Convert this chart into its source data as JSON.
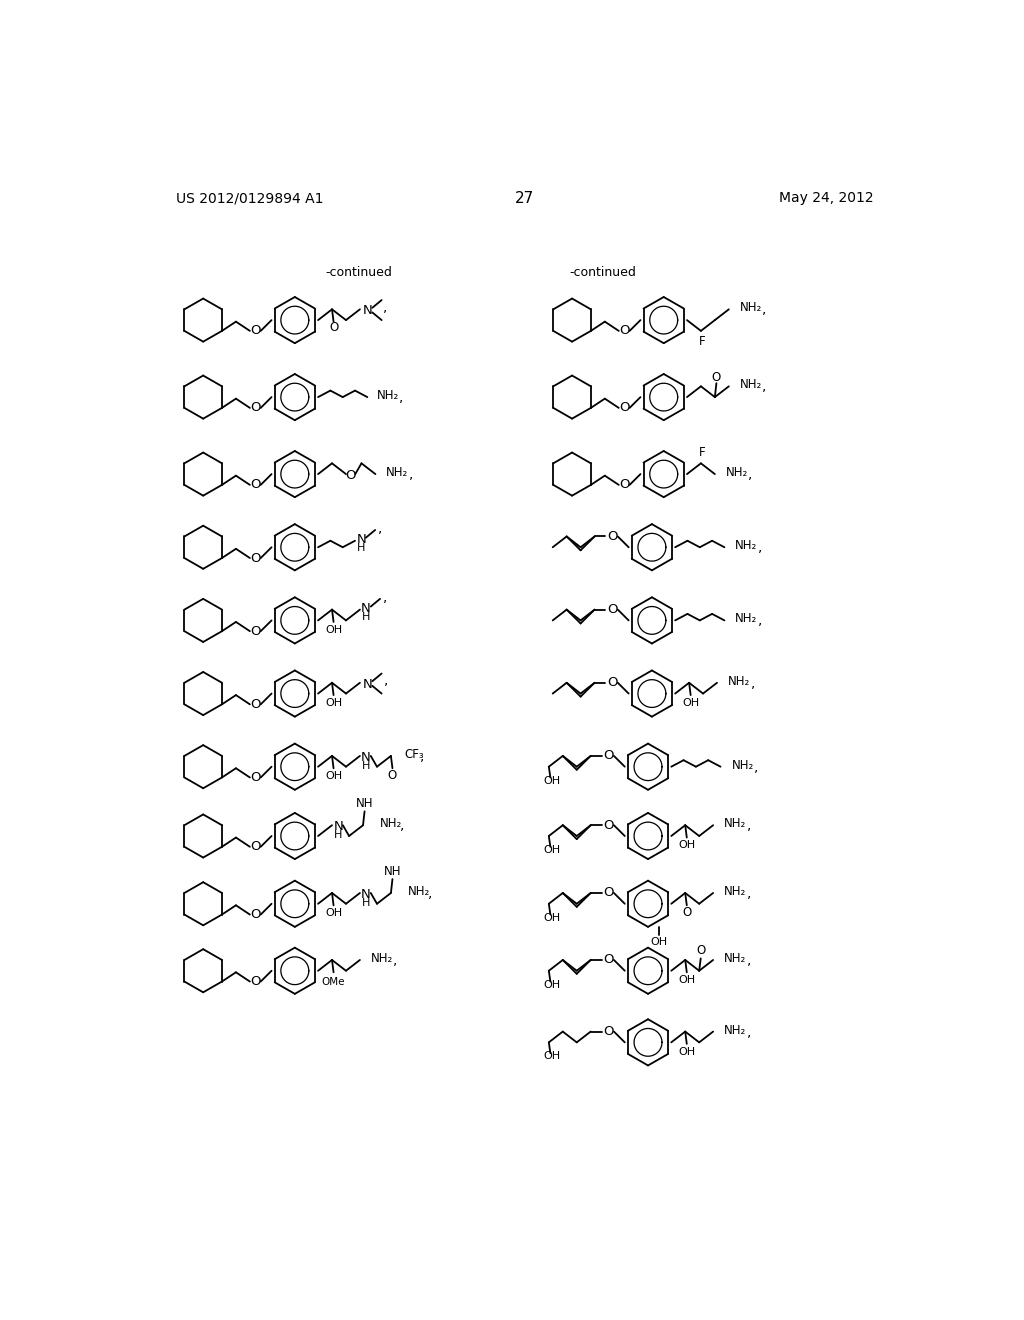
{
  "page_number": "27",
  "patent_number": "US 2012/0129894 A1",
  "date": "May 24, 2012",
  "background_color": "#ffffff",
  "text_color": "#000000",
  "continued_left": "-continued",
  "continued_right": "-continued"
}
